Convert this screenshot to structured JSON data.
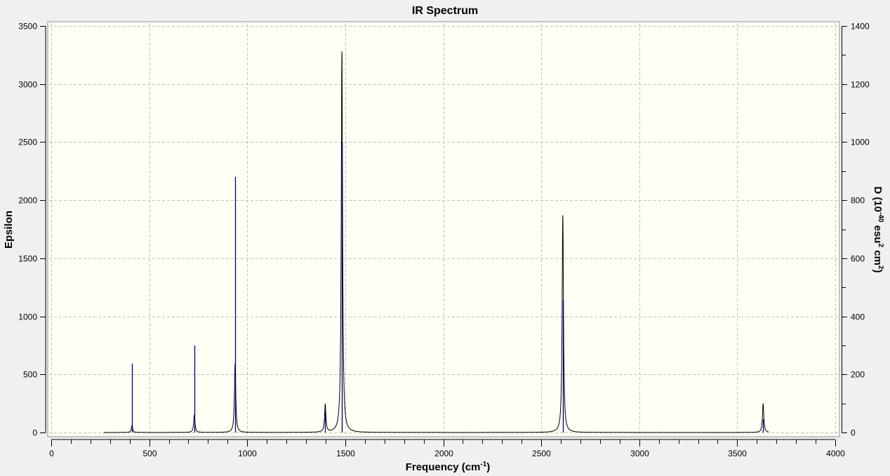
{
  "chart_data": {
    "type": "line",
    "title": "IR Spectrum",
    "xlabel": "Frequency (cm",
    "xlabel_sup": "-1",
    "xlabel_end": ")",
    "ylabel": "Epsilon",
    "y2label_parts": [
      "D (10",
      "-40",
      " esu",
      "2",
      " cm",
      "2",
      ")"
    ],
    "xlim": [
      0,
      4000
    ],
    "ylim": [
      0,
      3500
    ],
    "y2lim": [
      0,
      1400
    ],
    "x_ticks": [
      "0",
      "500",
      "1000",
      "1500",
      "2000",
      "2500",
      "3000",
      "3500",
      "4000"
    ],
    "y_ticks": [
      "0",
      "500",
      "1000",
      "1500",
      "2000",
      "2500",
      "3000",
      "3500"
    ],
    "y2_ticks": [
      "0",
      "200",
      "400",
      "600",
      "800",
      "1000",
      "1200",
      "1400"
    ],
    "grid": true,
    "curve_range": [
      268,
      3660
    ],
    "series": [
      {
        "kind": "curve",
        "axis": "left",
        "color": "#000000",
        "peaks": [
          {
            "x": 412,
            "y": 60
          },
          {
            "x": 730,
            "y": 150
          },
          {
            "x": 938,
            "y": 590
          },
          {
            "x": 1398,
            "y": 240
          },
          {
            "x": 1483,
            "y": 3280
          },
          {
            "x": 2610,
            "y": 1870
          },
          {
            "x": 3632,
            "y": 250
          }
        ]
      },
      {
        "kind": "sticks",
        "axis": "right",
        "color": "#000080",
        "x": [
          412,
          730,
          938,
          1398,
          1483,
          2610,
          3632
        ],
        "values": [
          237,
          300,
          880,
          75,
          1000,
          455,
          46
        ]
      }
    ],
    "colors": {
      "background": "#f0f0f0",
      "plot_background": "#fffff4",
      "grid": "#c0c0c0"
    }
  }
}
